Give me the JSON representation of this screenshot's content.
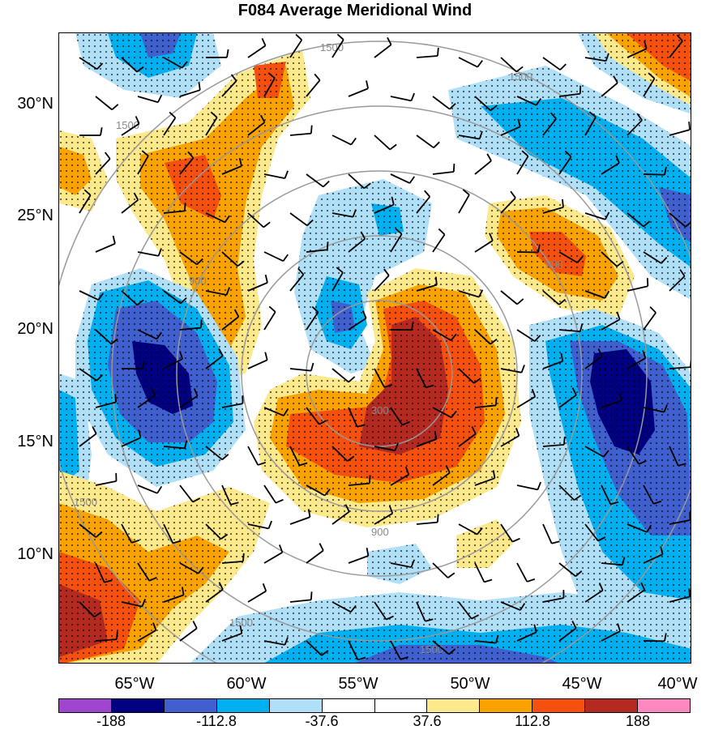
{
  "title": "F084 Average Meridional Wind",
  "latitude_labels": [
    "30°N",
    "25°N",
    "20°N",
    "15°N",
    "10°N"
  ],
  "longitude_labels": [
    "65°W",
    "60°W",
    "55°W",
    "50°W",
    "45°W",
    "40°W"
  ],
  "height_contour_labels": [
    "1500",
    "1500",
    "1500",
    "1500",
    "1500",
    "1500",
    "900",
    "900",
    "900",
    "300"
  ],
  "colorbar": {
    "colors": [
      "#a045d0",
      "#000080",
      "#4060d0",
      "#00b0f0",
      "#b0e0f8",
      "#ffffff",
      "#ffffff",
      "#fce98c",
      "#f9a200",
      "#f5500e",
      "#b42a20",
      "#ff88c0"
    ],
    "labels": [
      "-188",
      "-112.8",
      "-37.6",
      "37.6",
      "112.8",
      "188"
    ]
  },
  "colors": {
    "contour": "#999999",
    "stipple": "#000000"
  }
}
